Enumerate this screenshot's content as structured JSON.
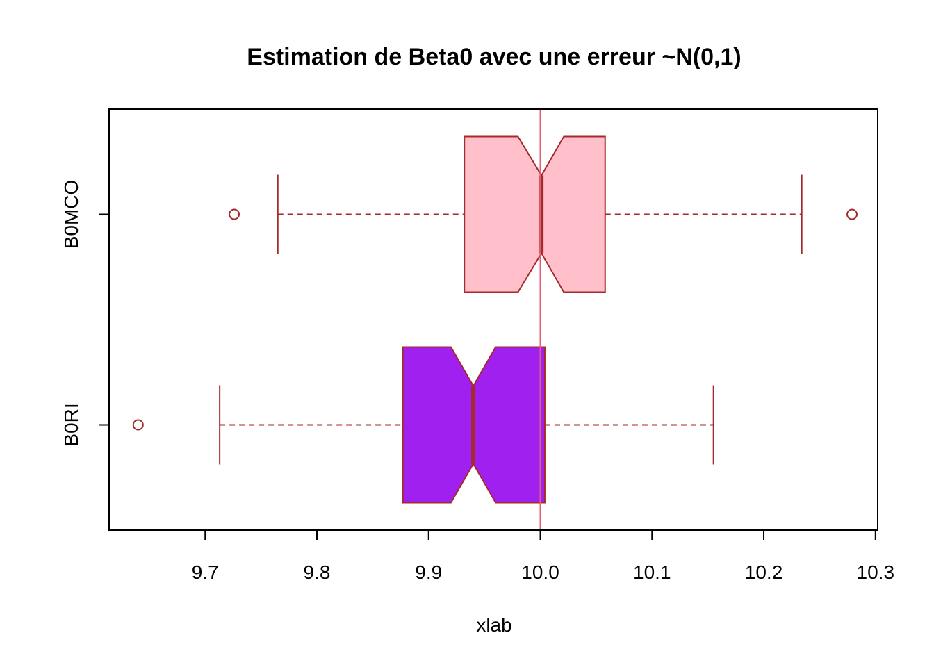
{
  "chart_data": {
    "type": "boxplot",
    "orientation": "horizontal",
    "title": "Estimation de Beta0 avec une erreur ~N(0,1)",
    "xlabel": "xlab",
    "ylabel": "",
    "xlim": [
      9.614,
      10.302
    ],
    "x_ticks": [
      9.7,
      9.8,
      9.9,
      10.0,
      10.1,
      10.2,
      10.3
    ],
    "x_tick_labels": [
      "9.7",
      "9.8",
      "9.9",
      "10.0",
      "10.1",
      "10.2",
      "10.3"
    ],
    "categories": [
      "B0RI",
      "B0MCO"
    ],
    "notch": true,
    "border_color": "#A52A2A",
    "reference_line": {
      "x": 10.0,
      "color": "#E0607A"
    },
    "series": [
      {
        "name": "B0RI",
        "fill": "#A020F0",
        "whisker_low": 9.713,
        "q1": 9.877,
        "notch_low": 9.92,
        "median": 9.94,
        "notch_high": 9.96,
        "q3": 10.004,
        "whisker_high": 10.155,
        "outliers": [
          9.64
        ]
      },
      {
        "name": "B0MCO",
        "fill": "#FFC0CB",
        "whisker_low": 9.765,
        "q1": 9.932,
        "notch_low": 9.98,
        "median": 10.001,
        "notch_high": 10.021,
        "q3": 10.058,
        "whisker_high": 10.234,
        "outliers": [
          9.726,
          10.279
        ]
      }
    ]
  }
}
